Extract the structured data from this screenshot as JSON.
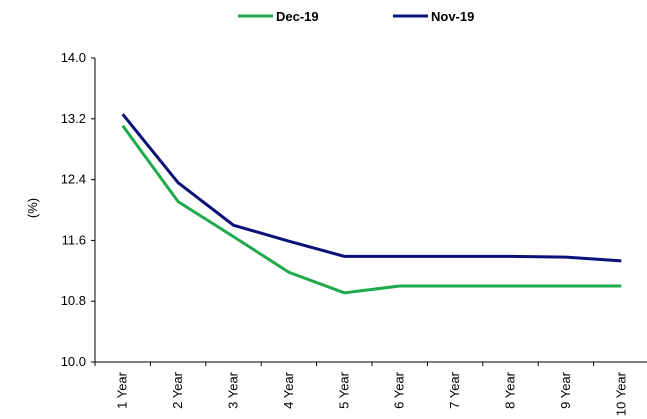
{
  "chart_data": {
    "type": "line",
    "categories": [
      "1 Year",
      "2 Year",
      "3 Year",
      "4 Year",
      "5 Year",
      "6 Year",
      "7 Year",
      "8 Year",
      "9 Year",
      "10 Year"
    ],
    "series": [
      {
        "name": "Dec-19",
        "color": "#1faa4b",
        "values": [
          13.11,
          12.11,
          11.65,
          11.18,
          10.91,
          11.0,
          11.0,
          11.0,
          11.0,
          11.0
        ]
      },
      {
        "name": "Nov-19",
        "color": "#0b1179",
        "values": [
          13.26,
          12.36,
          11.8,
          11.59,
          11.39,
          11.39,
          11.39,
          11.39,
          11.38,
          11.33
        ]
      }
    ],
    "ylabel": "(%)",
    "ylim": [
      10.0,
      14.0
    ],
    "yticks": [
      "10.0",
      "10.8",
      "11.6",
      "12.4",
      "13.2",
      "14.0"
    ],
    "grid": false,
    "legend": "top-center"
  }
}
